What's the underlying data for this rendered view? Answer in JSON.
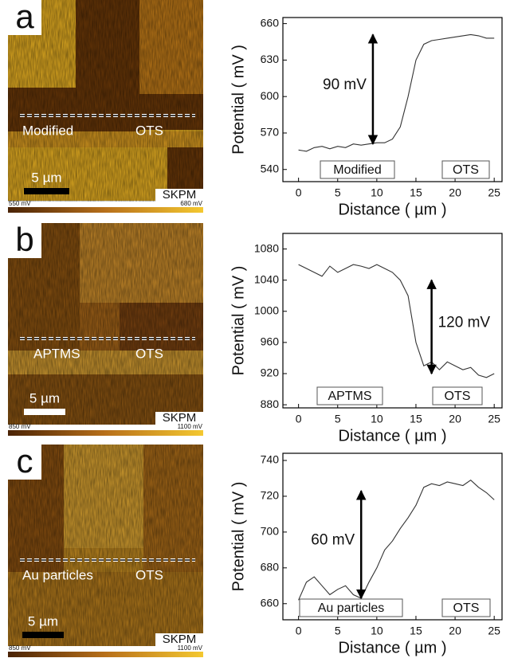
{
  "chart_data": [
    {
      "type": "line",
      "panel": "a",
      "y_label": "Potential ( mV )",
      "x_label": "Distance ( µm )",
      "x": [
        0,
        1,
        2,
        3,
        4,
        5,
        6,
        7,
        8,
        9,
        10,
        11,
        12,
        13,
        14,
        15,
        16,
        17,
        18,
        19,
        20,
        21,
        22,
        23,
        24,
        25
      ],
      "series": [
        {
          "color": "#333333",
          "values": [
            556,
            555,
            558,
            559,
            557,
            559,
            558,
            561,
            560,
            561,
            562,
            562,
            565,
            575,
            600,
            630,
            643,
            646,
            647,
            648,
            649,
            650,
            651,
            650,
            648,
            648
          ]
        }
      ],
      "annotation": {
        "text": "90 mV",
        "x": 9.5,
        "from": 561,
        "to": 651
      },
      "regions": [
        "Modified",
        "OTS"
      ],
      "xlim": [
        -2,
        26
      ],
      "xticks": [
        0,
        5,
        10,
        15,
        20,
        25
      ],
      "ylim": [
        530,
        665
      ],
      "yticks": [
        540,
        570,
        600,
        630,
        660
      ]
    },
    {
      "type": "line",
      "panel": "b",
      "y_label": "Potential ( mV )",
      "x_label": "Distance ( µm )",
      "x": [
        0,
        1,
        2,
        3,
        4,
        5,
        6,
        7,
        8,
        9,
        10,
        11,
        12,
        13,
        14,
        15,
        16,
        17,
        18,
        19,
        20,
        21,
        22,
        23,
        24,
        25
      ],
      "series": [
        {
          "color": "#333333",
          "values": [
            1060,
            1055,
            1050,
            1045,
            1058,
            1050,
            1055,
            1060,
            1058,
            1055,
            1060,
            1055,
            1050,
            1040,
            1020,
            960,
            930,
            935,
            925,
            935,
            930,
            925,
            928,
            918,
            915,
            920
          ]
        }
      ],
      "annotation": {
        "text": "120 mV",
        "x": 17,
        "from": 920,
        "to": 1040
      },
      "regions": [
        "APTMS",
        "OTS"
      ],
      "xlim": [
        -2,
        26
      ],
      "xticks": [
        0,
        5,
        10,
        15,
        20,
        25
      ],
      "ylim": [
        876,
        1100
      ],
      "yticks": [
        880,
        920,
        960,
        1000,
        1040,
        1080
      ]
    },
    {
      "type": "line",
      "panel": "c",
      "y_label": "Potential ( mV )",
      "x_label": "Distance ( µm )",
      "x": [
        0,
        1,
        2,
        3,
        4,
        5,
        6,
        7,
        8,
        9,
        10,
        11,
        12,
        13,
        14,
        15,
        16,
        17,
        18,
        19,
        20,
        21,
        22,
        23,
        24,
        25
      ],
      "series": [
        {
          "color": "#333333",
          "values": [
            662,
            672,
            675,
            670,
            665,
            668,
            670,
            665,
            663,
            672,
            680,
            690,
            695,
            702,
            708,
            715,
            725,
            727,
            726,
            728,
            727,
            726,
            729,
            725,
            722,
            718
          ]
        }
      ],
      "annotation": {
        "text": "60 mV",
        "x": 8,
        "from": 663,
        "to": 723
      },
      "regions": [
        "Au particles",
        "OTS"
      ],
      "xlim": [
        -2,
        26
      ],
      "xticks": [
        0,
        5,
        10,
        15,
        20,
        25
      ],
      "ylim": [
        651,
        744
      ],
      "yticks": [
        660,
        680,
        700,
        720,
        740
      ]
    }
  ],
  "images": [
    {
      "labels": [
        "Modified",
        "OTS"
      ],
      "scale_bar": "5 µm",
      "mode": "SKPM",
      "colorbar": [
        "550 mV",
        "680 mV"
      ]
    },
    {
      "labels": [
        "APTMS",
        "OTS"
      ],
      "scale_bar": "5 µm",
      "mode": "SKPM",
      "colorbar": [
        "850 mV",
        "1100 mV"
      ]
    },
    {
      "labels": [
        "Au particles",
        "OTS"
      ],
      "scale_bar": "5 µm",
      "mode": "SKPM",
      "colorbar": [
        "850 mV",
        "1100 mV"
      ]
    }
  ]
}
